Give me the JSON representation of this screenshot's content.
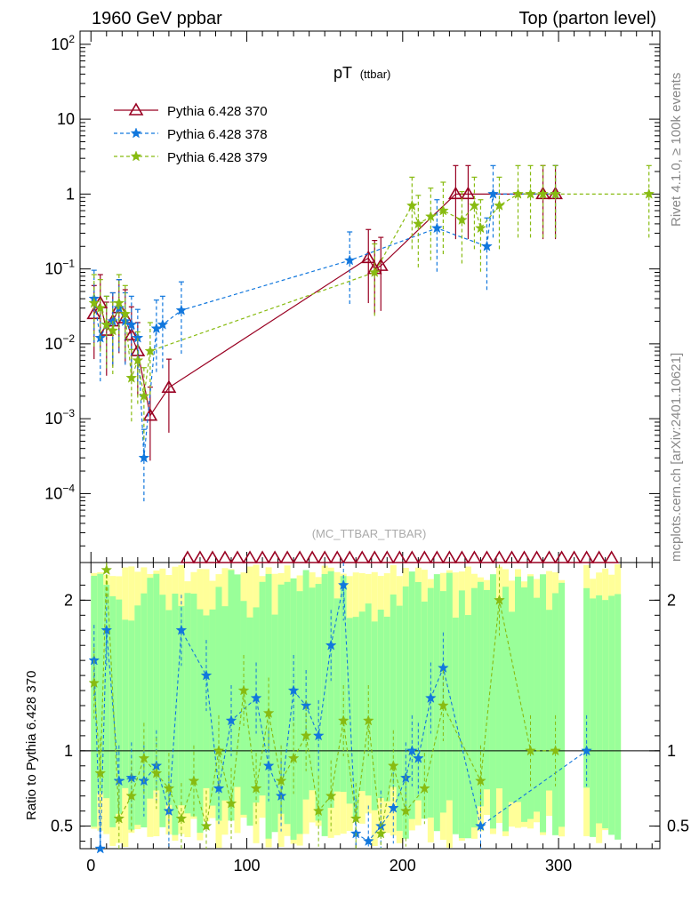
{
  "header": {
    "left": "1960 GeV ppbar",
    "right": "Top (parton level)"
  },
  "side_labels": {
    "rivet": "Rivet 4.1.0, ≥ 100k events",
    "mcplots": "mcplots.cern.ch [arXiv:2401.10621]"
  },
  "colors": {
    "s370": "#990022",
    "s378": "#1177dd",
    "s379": "#88bb11",
    "band_yellow": "#ffff99",
    "band_green": "#99ff99"
  },
  "chart_data": {
    "type": "line",
    "title": "pT",
    "title_sub": "(ttbar)",
    "watermark": "(MC_TTBAR_TTBAR)",
    "main_yscale": "log",
    "main_ylim": [
      1.2e-05,
      150
    ],
    "main_yticks": [
      {
        "label": "10",
        "sup": "2"
      },
      {
        "label": "10",
        "sup": ""
      },
      {
        "label": "1",
        "sup": ""
      },
      {
        "label": "10",
        "sup": "−1"
      },
      {
        "label": "10",
        "sup": "−2"
      },
      {
        "label": "10",
        "sup": "−3"
      },
      {
        "label": "10",
        "sup": "−4"
      }
    ],
    "xlim": [
      -7,
      365
    ],
    "xticks": [
      "0",
      "100",
      "200",
      "300"
    ],
    "ratio_ylabel": "Ratio to Pythia 6.428 370",
    "ratio_ylim": [
      0.35,
      2.25
    ],
    "ratio_yticks": [
      "2",
      "1",
      "0.5"
    ],
    "legend": [
      "Pythia 6.428 370",
      "Pythia 6.428 378",
      "Pythia 6.428 379"
    ],
    "series": [
      {
        "name": "Pythia 6.428 370",
        "x": [
          2,
          6,
          10,
          14,
          18,
          22,
          26,
          30,
          38,
          50,
          178,
          182,
          186,
          234,
          242,
          290,
          298
        ],
        "values": [
          0.025,
          0.035,
          0.015,
          0.02,
          0.03,
          0.022,
          0.013,
          0.008,
          0.0011,
          0.0026,
          0.14,
          0.1,
          0.11,
          1.0,
          1.0,
          1.0,
          1.0
        ]
      },
      {
        "name": "Pythia 6.428 378",
        "x": [
          2,
          6,
          10,
          14,
          18,
          22,
          26,
          30,
          34,
          42,
          46,
          58,
          166,
          222,
          254,
          258,
          298
        ],
        "values": [
          0.04,
          0.012,
          0.018,
          0.02,
          0.03,
          0.02,
          0.018,
          0.012,
          0.0003,
          0.016,
          0.018,
          0.028,
          0.13,
          0.35,
          0.2,
          1.0,
          1.0
        ]
      },
      {
        "name": "Pythia 6.428 379",
        "x": [
          2,
          6,
          10,
          14,
          18,
          22,
          26,
          30,
          34,
          38,
          182,
          206,
          210,
          218,
          226,
          238,
          246,
          250,
          262,
          274,
          282,
          290,
          298,
          358
        ],
        "values": [
          0.035,
          0.03,
          0.018,
          0.015,
          0.035,
          0.025,
          0.0035,
          0.006,
          0.002,
          0.008,
          0.09,
          0.7,
          0.4,
          0.5,
          0.6,
          0.45,
          0.7,
          0.35,
          0.7,
          1.0,
          1.0,
          1.0,
          1.0,
          1.0
        ]
      }
    ],
    "ratio_series": [
      {
        "name": "Pythia 6.428 378",
        "x": [
          2,
          6,
          10,
          18,
          26,
          34,
          42,
          50,
          58,
          74,
          82,
          90,
          106,
          114,
          122,
          130,
          138,
          146,
          154,
          162,
          170,
          178,
          186,
          194,
          202,
          206,
          210,
          218,
          226,
          250,
          318
        ],
        "values": [
          1.6,
          0.3,
          1.8,
          0.8,
          0.82,
          0.8,
          0.9,
          0.6,
          1.8,
          1.5,
          0.75,
          1.2,
          1.35,
          0.9,
          0.7,
          1.4,
          1.3,
          1.1,
          1.7,
          2.1,
          0.45,
          0.4,
          0.5,
          0.62,
          0.82,
          1.0,
          0.95,
          1.35,
          1.55,
          0.5,
          1.0
        ]
      },
      {
        "name": "Pythia 6.428 379",
        "x": [
          2,
          6,
          10,
          18,
          26,
          34,
          42,
          50,
          58,
          66,
          74,
          82,
          90,
          98,
          106,
          114,
          122,
          130,
          138,
          146,
          154,
          162,
          170,
          178,
          186,
          194,
          202,
          214,
          226,
          250,
          262,
          282,
          298
        ],
        "values": [
          1.45,
          0.85,
          2.2,
          0.55,
          0.7,
          0.95,
          0.85,
          0.75,
          0.55,
          0.8,
          0.5,
          1.0,
          0.65,
          1.4,
          0.75,
          1.25,
          0.8,
          0.95,
          1.1,
          0.6,
          0.7,
          1.2,
          0.55,
          1.2,
          0.45,
          0.9,
          0.6,
          0.75,
          1.3,
          0.8,
          2.0,
          1.0,
          1.0
        ]
      }
    ]
  }
}
